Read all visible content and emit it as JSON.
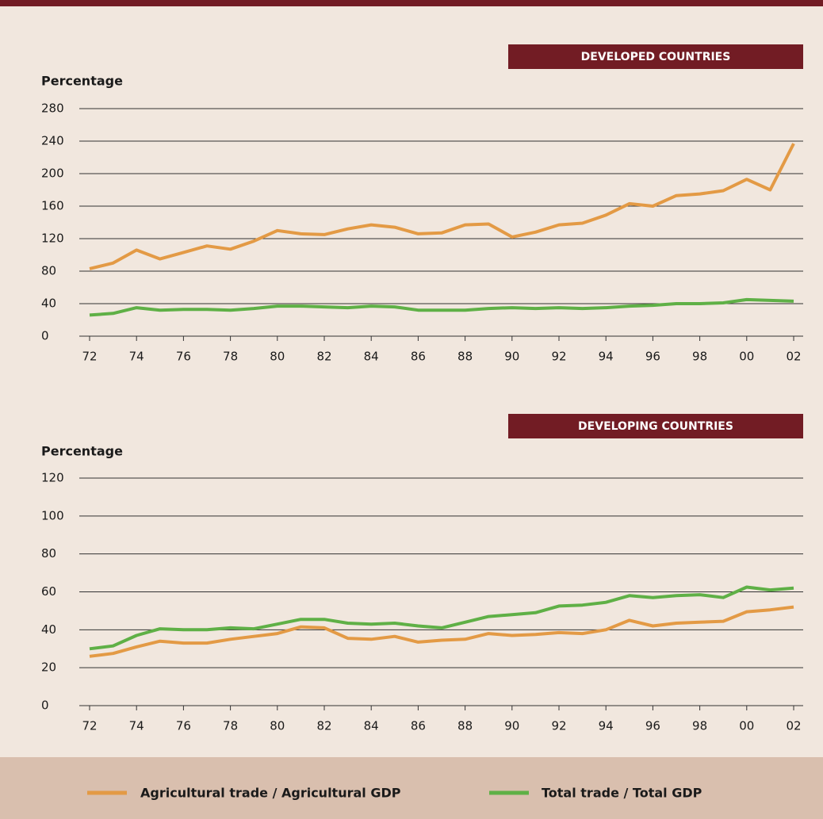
{
  "chart_data": [
    {
      "type": "line",
      "title": "DEVELOPED COUNTRIES",
      "y_label": "Percentage",
      "categories": [
        "72",
        null,
        "74",
        null,
        "76",
        null,
        "78",
        null,
        "80",
        null,
        "82",
        null,
        "84",
        null,
        "86",
        null,
        "88",
        null,
        "90",
        null,
        "92",
        null,
        "94",
        null,
        "96",
        null,
        "98",
        null,
        "00",
        null,
        "02"
      ],
      "series": [
        {
          "name": "Agricultural trade / Agricultural GDP",
          "color": "#e39a45",
          "values": [
            83,
            90,
            106,
            95,
            103,
            111,
            107,
            117,
            130,
            126,
            125,
            132,
            137,
            134,
            126,
            127,
            137,
            138,
            122,
            128,
            137,
            139,
            149,
            163,
            160,
            173,
            175,
            179,
            193,
            180,
            237
          ]
        },
        {
          "name": "Total trade / Total GDP",
          "color": "#5fb046",
          "values": [
            26,
            28,
            35,
            32,
            33,
            33,
            32,
            34,
            37,
            37,
            36,
            35,
            37,
            36,
            32,
            32,
            32,
            34,
            35,
            34,
            35,
            34,
            35,
            37,
            38,
            40,
            40,
            41,
            45,
            44,
            43
          ]
        }
      ],
      "ylim": [
        0,
        280
      ],
      "yticks": [
        0,
        40,
        80,
        120,
        160,
        200,
        240,
        280
      ],
      "grid": true
    },
    {
      "type": "line",
      "title": "DEVELOPING COUNTRIES",
      "y_label": "Percentage",
      "categories": [
        "72",
        null,
        "74",
        null,
        "76",
        null,
        "78",
        null,
        "80",
        null,
        "82",
        null,
        "84",
        null,
        "86",
        null,
        "88",
        null,
        "90",
        null,
        "92",
        null,
        "94",
        null,
        "96",
        null,
        "98",
        null,
        "00",
        null,
        "02"
      ],
      "series": [
        {
          "color": "#e39a45",
          "values": [
            26,
            27.5,
            31,
            34,
            33,
            33,
            35,
            36.5,
            38,
            41.5,
            41,
            35.5,
            35,
            36.5,
            33.5,
            34.5,
            35,
            38,
            37,
            37.5,
            38.5,
            38,
            40,
            45,
            42,
            43.5,
            44,
            44.5,
            49.5,
            50.5,
            52
          ]
        },
        {
          "color": "#5fb046",
          "values": [
            30,
            31.5,
            37,
            40.5,
            40,
            40,
            41,
            40.5,
            43,
            45.5,
            45.5,
            43.5,
            43,
            43.5,
            42,
            41,
            44,
            47,
            48,
            49,
            52.5,
            53,
            54.5,
            58,
            57,
            58,
            58.5,
            57,
            62.5,
            61,
            62
          ]
        }
      ],
      "ylim": [
        0,
        120
      ],
      "yticks": [
        0,
        20,
        40,
        60,
        80,
        100,
        120
      ],
      "grid": true
    }
  ]
}
